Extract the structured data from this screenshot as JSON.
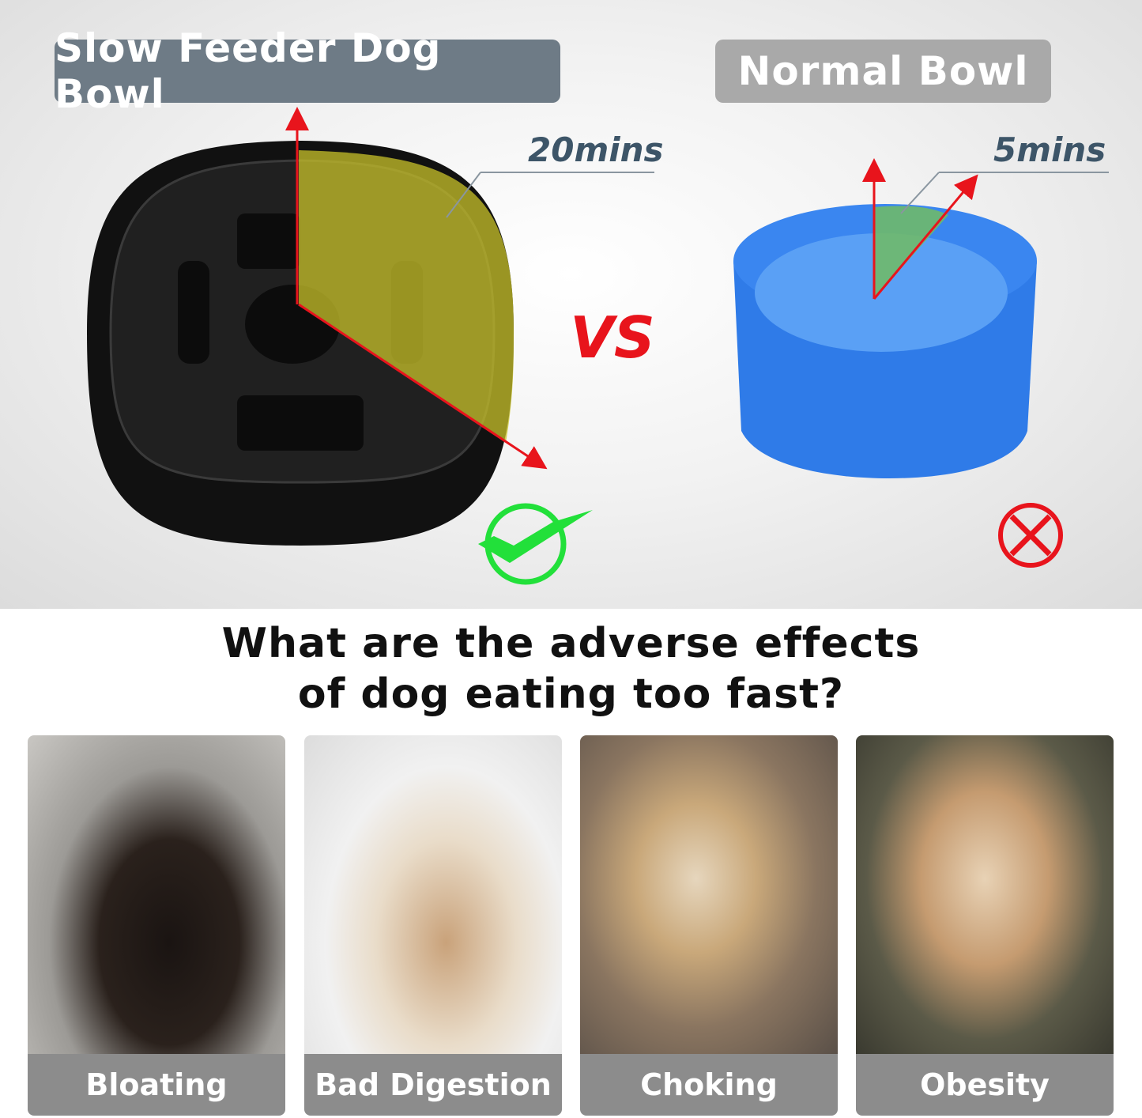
{
  "labels": {
    "slow": "Slow Feeder Dog Bowl",
    "normal": "Normal Bowl"
  },
  "times": {
    "slow": "20mins",
    "normal": "5mins"
  },
  "vs": "VS",
  "icons": {
    "slow_result": "check-circle-icon",
    "normal_result": "x-circle-icon"
  },
  "colors": {
    "slow_label": "#6e7b86",
    "normal_label": "#a9a9a9",
    "arrow": "#e8141c",
    "check": "#22e03a",
    "cross": "#e8141c",
    "bowl_blue": "#2f7be8",
    "slow_area": "#b5b321"
  },
  "title_lines": [
    "What are the adverse effects",
    "of dog eating too fast?"
  ],
  "effects": [
    {
      "label": "Bloating"
    },
    {
      "label": "Bad Digestion"
    },
    {
      "label": "Choking"
    },
    {
      "label": "Obesity"
    }
  ]
}
